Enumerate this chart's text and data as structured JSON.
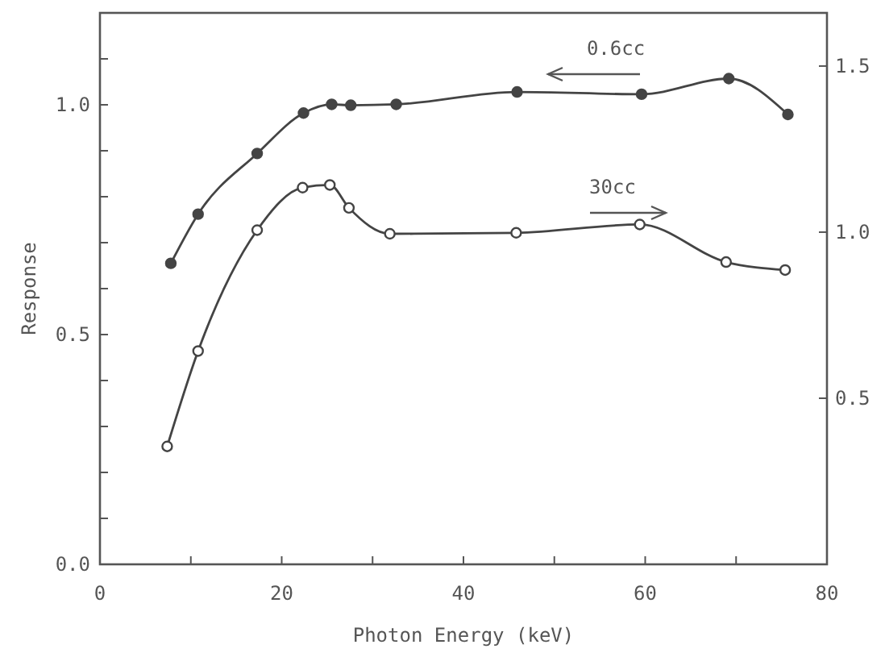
{
  "chart_data": {
    "type": "line",
    "xlabel": "Photon Energy (keV)",
    "ylabel": "Response",
    "xlim": [
      0,
      80
    ],
    "xticks": [
      0,
      {
        "value": 10,
        "label": null
      },
      20,
      {
        "value": 30,
        "label": null
      },
      40,
      {
        "value": 50,
        "label": null
      },
      60,
      {
        "value": 70,
        "label": null
      },
      80
    ],
    "ylim": [
      0,
      1.2
    ],
    "yticks": [
      {
        "value": 0,
        "label": "0.0"
      },
      {
        "value": 0.1,
        "label": null
      },
      {
        "value": 0.2,
        "label": null
      },
      {
        "value": 0.3,
        "label": null
      },
      {
        "value": 0.4,
        "label": null
      },
      {
        "value": 0.5,
        "label": "0.5"
      },
      {
        "value": 0.6,
        "label": null
      },
      {
        "value": 0.7,
        "label": null
      },
      {
        "value": 0.8,
        "label": null
      },
      {
        "value": 0.9,
        "label": null
      },
      {
        "value": 1,
        "label": "1.0"
      },
      {
        "value": 1.1,
        "label": null
      },
      {
        "value": 1.2,
        "label": null
      }
    ],
    "y2lim": [
      0,
      1.66
    ],
    "y2ticks": [
      0.5,
      {
        "value": 1,
        "label": "1.0"
      },
      1.5
    ],
    "grid": false,
    "marker": "circle",
    "line_style": "solid",
    "series": [
      {
        "color": "#444444",
        "x": [
          7.8,
          10.8,
          17.3,
          22.4,
          25.5,
          27.6,
          32.6,
          45.9,
          59.6,
          69.2,
          75.7
        ],
        "values": [
          0.655,
          0.762,
          0.894,
          0.982,
          1.001,
          0.999,
          1.001,
          1.028,
          1.023,
          1.057,
          0.979
        ]
      },
      {
        "color": "#444444",
        "axis": "y2",
        "x": [
          7.4,
          10.8,
          17.3,
          22.3,
          25.3,
          27.4,
          31.9,
          45.8,
          59.4,
          68.9,
          75.4
        ],
        "values": [
          0.355,
          0.642,
          1.006,
          1.134,
          1.142,
          1.073,
          0.995,
          0.998,
          1.023,
          0.91,
          0.886
        ]
      }
    ],
    "annotations": [
      "0.6cc",
      "30cc"
    ]
  }
}
